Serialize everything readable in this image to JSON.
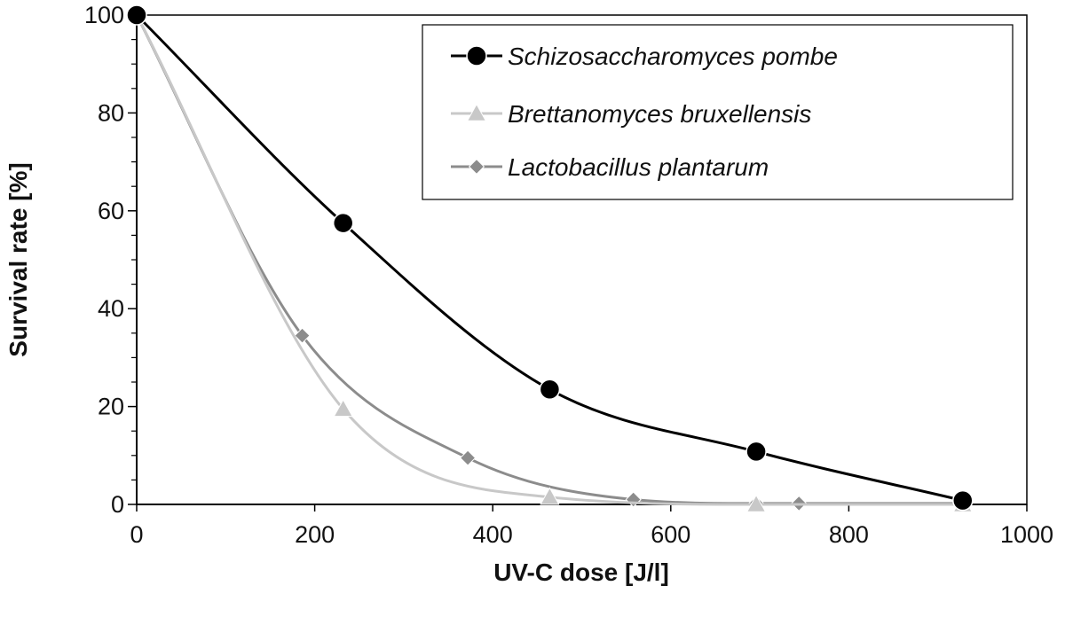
{
  "chart_data": {
    "type": "line",
    "title": "",
    "xlabel": "UV-C dose [J/l]",
    "ylabel": "Survival rate [%]",
    "xlim": [
      0,
      1000
    ],
    "ylim": [
      0,
      100
    ],
    "x_ticks": [
      0,
      200,
      400,
      600,
      800,
      1000
    ],
    "y_ticks": [
      0,
      20,
      40,
      60,
      80,
      100
    ],
    "grid": false,
    "legend_position": "top-right",
    "smooth": true,
    "series": [
      {
        "name": "Schizosaccharomyces pombe",
        "marker": "circle",
        "color": "#000000",
        "x": [
          0,
          232,
          464,
          696,
          928
        ],
        "y": [
          100,
          57.5,
          23.5,
          10.8,
          0.8
        ]
      },
      {
        "name": "Brettanomyces bruxellensis",
        "marker": "triangle",
        "color": "#c8c8c8",
        "x": [
          0,
          232,
          464,
          696,
          928
        ],
        "y": [
          100,
          19.5,
          1.5,
          0,
          0
        ]
      },
      {
        "name": "Lactobacillus plantarum",
        "marker": "diamond",
        "color": "#8c8c8c",
        "x": [
          0,
          186,
          372,
          558,
          696,
          744,
          928
        ],
        "y": [
          100,
          34.5,
          9.5,
          1.0,
          0.2,
          0.2,
          0.2
        ]
      }
    ]
  }
}
